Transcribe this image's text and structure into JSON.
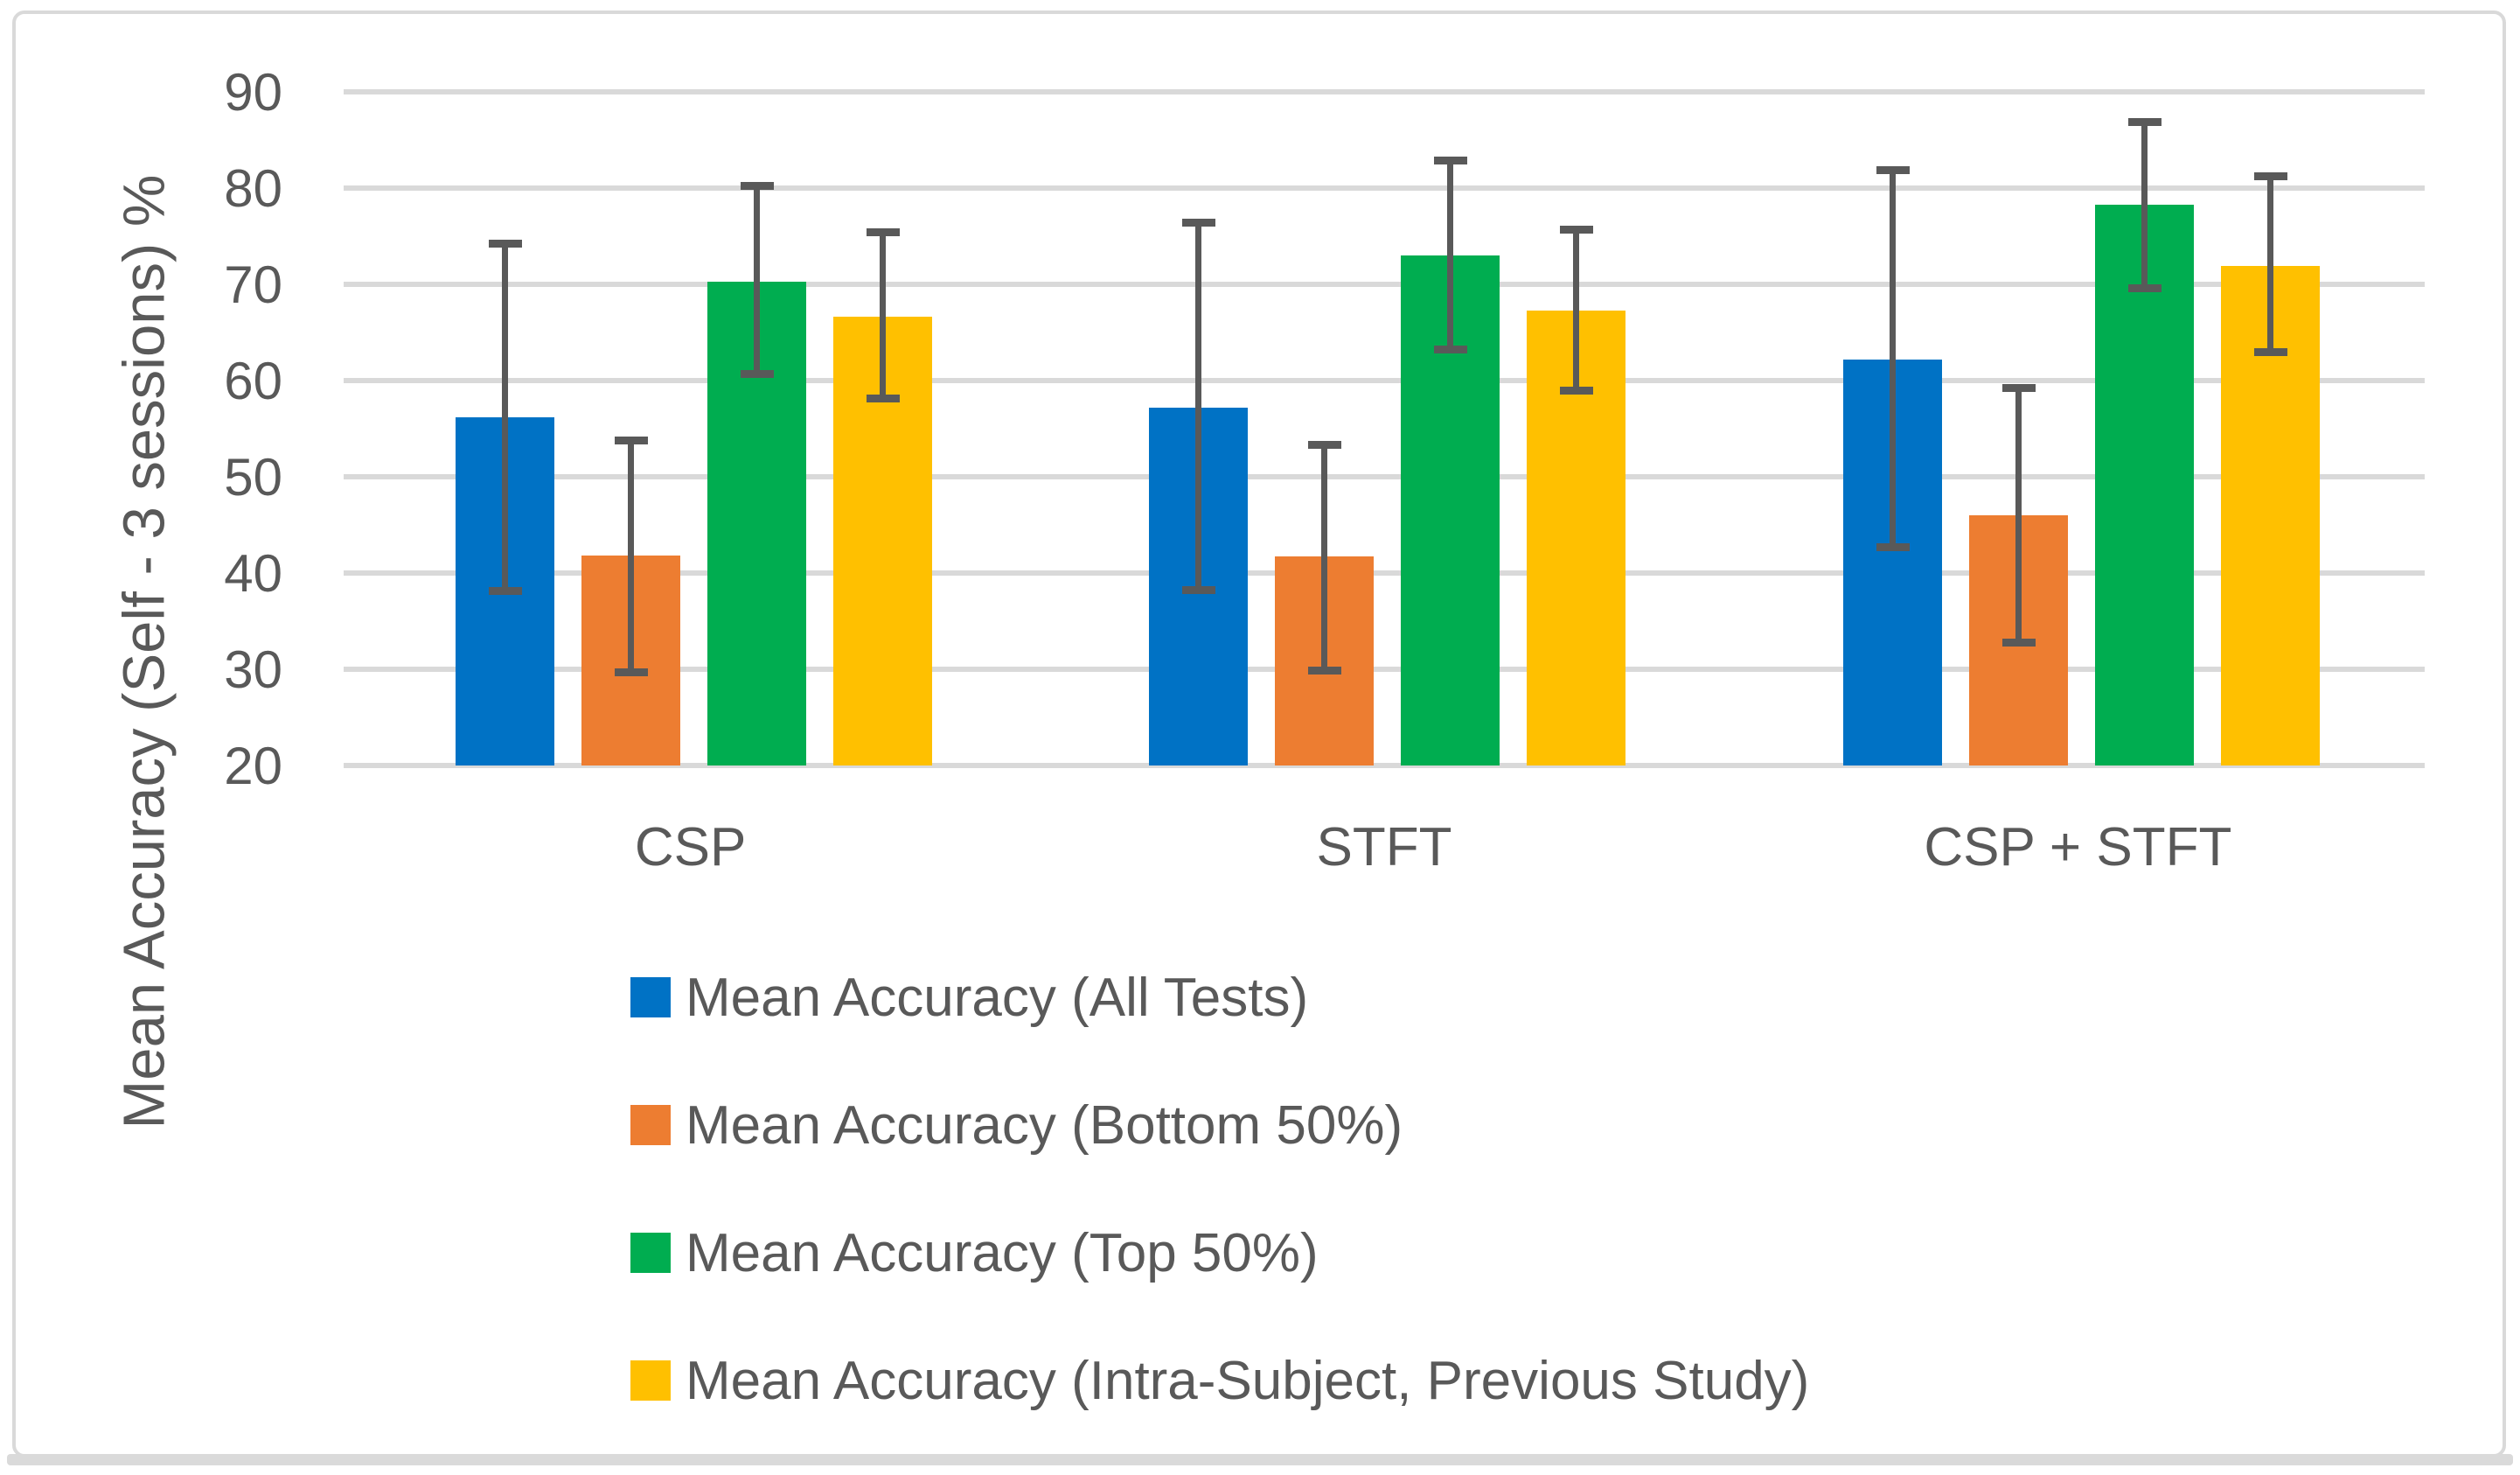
{
  "figure": {
    "background": "#ffffff",
    "border_color": "#D9D9D9",
    "gridline_color": "#D9D9D9",
    "error_bar_color": "#595959",
    "text_color": "#595959"
  },
  "y_axis": {
    "title": "Mean Accuracy (Self - 3 sessions) %",
    "tick_labels": [
      "90",
      "80",
      "70",
      "60",
      "50",
      "40",
      "30",
      "20"
    ],
    "min": 20,
    "max": 90
  },
  "x_axis": {
    "categories": [
      "CSP",
      "STFT",
      "CSP + STFT"
    ]
  },
  "legend": {
    "items": [
      {
        "label": "Mean Accuracy (All Tests)",
        "color": "#0072C5"
      },
      {
        "label": "Mean Accuracy (Bottom 50%)",
        "color": "#ED7D31"
      },
      {
        "label": "Mean Accuracy (Top 50%)",
        "color": "#00AD50"
      },
      {
        "label": "Mean Accuracy (Intra-Subject, Previous Study)",
        "color": "#FFC000"
      }
    ]
  },
  "chart_data": {
    "type": "bar",
    "title": "",
    "xlabel": "",
    "ylabel": "Mean Accuracy (Self - 3 sessions) %",
    "ylim": [
      20,
      90
    ],
    "ytick_step": 10,
    "grid": true,
    "legend_position": "bottom",
    "error_bars": true,
    "categories": [
      "CSP",
      "STFT",
      "CSP + STFT"
    ],
    "series": [
      {
        "name": "Mean Accuracy (All Tests)",
        "color": "#0072C5",
        "values": [
          56.2,
          57.2,
          62.2
        ],
        "error_low": [
          38.1,
          38.2,
          42.7
        ],
        "error_high": [
          74.2,
          76.4,
          81.9
        ]
      },
      {
        "name": "Mean Accuracy (Bottom 50%)",
        "color": "#ED7D31",
        "values": [
          41.8,
          41.7,
          46.0
        ],
        "error_low": [
          29.7,
          29.9,
          32.8
        ],
        "error_high": [
          53.8,
          53.3,
          59.2
        ]
      },
      {
        "name": "Mean Accuracy (Top 50%)",
        "color": "#00AD50",
        "values": [
          70.3,
          73.0,
          78.3
        ],
        "error_low": [
          60.7,
          63.2,
          69.6
        ],
        "error_high": [
          80.2,
          82.9,
          86.9
        ]
      },
      {
        "name": "Mean Accuracy (Intra-Subject, Previous Study)",
        "color": "#FFC000",
        "values": [
          66.6,
          67.3,
          71.9
        ],
        "error_low": [
          58.1,
          59.0,
          63.0
        ],
        "error_high": [
          75.4,
          75.7,
          81.2
        ]
      }
    ]
  }
}
